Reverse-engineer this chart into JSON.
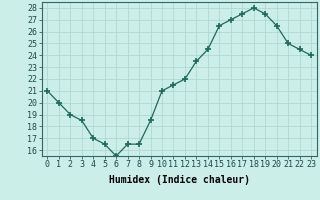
{
  "x": [
    0,
    1,
    2,
    3,
    4,
    5,
    6,
    7,
    8,
    9,
    10,
    11,
    12,
    13,
    14,
    15,
    16,
    17,
    18,
    19,
    20,
    21,
    22,
    23
  ],
  "y": [
    21,
    20,
    19,
    18.5,
    17,
    16.5,
    15.5,
    16.5,
    16.5,
    18.5,
    21,
    21.5,
    22,
    23.5,
    24.5,
    26.5,
    27,
    27.5,
    28,
    27.5,
    26.5,
    25,
    24.5,
    24
  ],
  "xlabel": "Humidex (Indice chaleur)",
  "ylim": [
    15.5,
    28.5
  ],
  "xlim": [
    -0.5,
    23.5
  ],
  "yticks": [
    16,
    17,
    18,
    19,
    20,
    21,
    22,
    23,
    24,
    25,
    26,
    27,
    28
  ],
  "xticks": [
    0,
    1,
    2,
    3,
    4,
    5,
    6,
    7,
    8,
    9,
    10,
    11,
    12,
    13,
    14,
    15,
    16,
    17,
    18,
    19,
    20,
    21,
    22,
    23
  ],
  "line_color": "#1a6b5a",
  "marker_color": "#1a6b5a",
  "bg_color": "#cceee8",
  "grid_color": "#aad4cc",
  "label_fontsize": 7,
  "tick_fontsize": 6
}
